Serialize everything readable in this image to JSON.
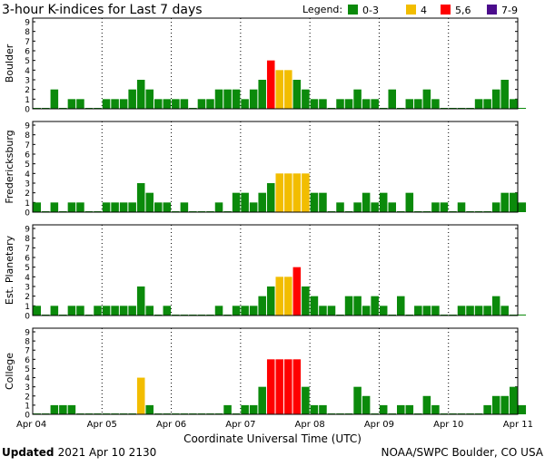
{
  "title": "3-hour K-indices for Last 7 days",
  "legend": {
    "label": "Legend:",
    "items": [
      {
        "label": "0-3",
        "color": "#0b8a0b"
      },
      {
        "label": "4",
        "color": "#f2bd00"
      },
      {
        "label": "5,6",
        "color": "#ff0000"
      },
      {
        "label": "7-9",
        "color": "#4b0c8c"
      }
    ]
  },
  "xlabel": "Coordinate Universal Time (UTC)",
  "footer": {
    "updated_label": "Updated",
    "updated_value": "2021 Apr 10 2130",
    "credit": "NOAA/SWPC Boulder, CO USA"
  },
  "chart_data": {
    "type": "bar",
    "x_ticks": [
      "Apr 04",
      "Apr 05",
      "Apr 06",
      "Apr 07",
      "Apr 08",
      "Apr 09",
      "Apr 10",
      "Apr 11"
    ],
    "ylim": [
      0,
      9
    ],
    "y_ticks": [
      0,
      1,
      2,
      3,
      4,
      5,
      6,
      7,
      8,
      9
    ],
    "grid": true,
    "bins_per_day": 8,
    "series": [
      {
        "name": "Boulder",
        "values": [
          0,
          0,
          2,
          0,
          1,
          1,
          0,
          0,
          1,
          1,
          1,
          2,
          3,
          2,
          1,
          1,
          1,
          1,
          0,
          1,
          1,
          2,
          2,
          2,
          1,
          2,
          3,
          5,
          4,
          4,
          3,
          2,
          1,
          1,
          0,
          1,
          1,
          2,
          1,
          1,
          0,
          2,
          0,
          1,
          1,
          2,
          1,
          0,
          0,
          0,
          0,
          1,
          1,
          2,
          3,
          1,
          0
        ]
      },
      {
        "name": "Fredericksburg",
        "values": [
          1,
          0,
          1,
          0,
          1,
          1,
          0,
          0,
          1,
          1,
          1,
          1,
          3,
          2,
          1,
          1,
          0,
          1,
          0,
          0,
          0,
          1,
          0,
          2,
          2,
          1,
          2,
          3,
          4,
          4,
          4,
          4,
          2,
          2,
          0,
          1,
          0,
          1,
          2,
          1,
          2,
          1,
          0,
          2,
          0,
          0,
          1,
          1,
          0,
          1,
          0,
          0,
          0,
          1,
          2,
          2,
          1
        ]
      },
      {
        "name": "Est. Planetary",
        "values": [
          1,
          0,
          1,
          0,
          1,
          1,
          0,
          1,
          1,
          1,
          1,
          1,
          3,
          1,
          0,
          1,
          0,
          0,
          0,
          0,
          0,
          1,
          0,
          1,
          1,
          1,
          2,
          3,
          4,
          4,
          5,
          3,
          2,
          1,
          1,
          0,
          2,
          2,
          1,
          2,
          1,
          0,
          2,
          0,
          1,
          1,
          1,
          0,
          0,
          1,
          1,
          1,
          1,
          2,
          1,
          0,
          0
        ]
      },
      {
        "name": "College",
        "values": [
          0,
          0,
          1,
          1,
          1,
          0,
          0,
          0,
          0,
          0,
          0,
          0,
          4,
          1,
          0,
          0,
          0,
          0,
          0,
          0,
          0,
          0,
          1,
          0,
          1,
          1,
          3,
          6,
          6,
          6,
          6,
          3,
          1,
          1,
          0,
          0,
          0,
          3,
          2,
          0,
          1,
          0,
          1,
          1,
          0,
          2,
          1,
          0,
          0,
          0,
          0,
          0,
          1,
          2,
          2,
          3,
          1
        ]
      }
    ]
  }
}
